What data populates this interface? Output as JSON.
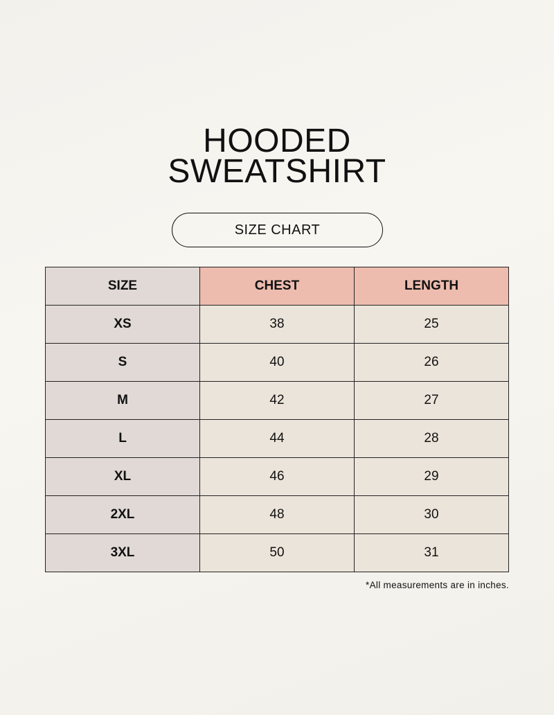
{
  "title_lines": [
    "HOODED",
    "SWEATSHIRT"
  ],
  "subtitle": "SIZE CHART",
  "table": {
    "headers": [
      "SIZE",
      "CHEST",
      "LENGTH"
    ],
    "rows": [
      [
        "XS",
        "38",
        "25"
      ],
      [
        "S",
        "40",
        "26"
      ],
      [
        "M",
        "42",
        "27"
      ],
      [
        "L",
        "44",
        "28"
      ],
      [
        "XL",
        "46",
        "29"
      ],
      [
        "2XL",
        "48",
        "30"
      ],
      [
        "3XL",
        "50",
        "31"
      ]
    ]
  },
  "footnote": "*All measurements are in inches.",
  "colors": {
    "size_column": "#e0d9d5",
    "header_accent": "#edbcae",
    "cell": "#ebe4da"
  }
}
